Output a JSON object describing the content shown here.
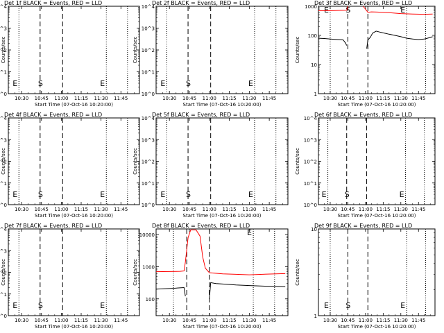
{
  "figure": {
    "panels_grid": "3x3",
    "xlabel": "Start Time (07-Oct-16 10:20:00)",
    "ylabel": "Counts/sec",
    "x_tick_labels": [
      "10:30",
      "10:45",
      "11:00",
      "11:15",
      "11:30",
      "11:45"
    ],
    "marker_labels": {
      "end": "E",
      "start": "S"
    },
    "colors": {
      "events": "#000000",
      "lld": "#ff0000",
      "frame": "#000000"
    }
  },
  "chart_data": [
    {
      "id": "det1",
      "type": "line",
      "title": "Det 1f BLACK = Events, RED = LLD",
      "xlim": [
        "10:20",
        "11:59"
      ],
      "ylim": [
        1,
        10000
      ],
      "yscale": "log",
      "y_tick_labels": [
        "10^0",
        "10^1",
        "10^2",
        "10^3",
        "10^4"
      ],
      "vlines": [
        {
          "style": "dotted",
          "x": "10:28",
          "label": "E"
        },
        {
          "style": "dashed",
          "x": "10:44",
          "label": "S"
        },
        {
          "style": "dashed",
          "x": "11:01",
          "label": ""
        },
        {
          "style": "dotted",
          "x": "11:34",
          "label": "E"
        },
        {
          "style": "dotted",
          "x": "11:50",
          "label": ""
        }
      ],
      "series": []
    },
    {
      "id": "det2",
      "type": "line",
      "title": "Det 2f BLACK = Events, RED = LLD",
      "xlim": [
        "10:20",
        "11:59"
      ],
      "ylim": [
        1,
        10000
      ],
      "yscale": "log",
      "y_tick_labels": [
        "10^0",
        "10^1",
        "10^2",
        "10^3",
        "10^4"
      ],
      "vlines": [
        {
          "style": "dotted",
          "x": "10:28",
          "label": "E"
        },
        {
          "style": "dashed",
          "x": "10:44",
          "label": "S"
        },
        {
          "style": "dashed",
          "x": "11:01",
          "label": ""
        },
        {
          "style": "dotted",
          "x": "11:34",
          "label": "E"
        },
        {
          "style": "dotted",
          "x": "11:50",
          "label": ""
        }
      ],
      "series": []
    },
    {
      "id": "det3",
      "type": "line",
      "title": "Det 3f BLACK = Events, RED = LLD",
      "xlim": [
        "10:20",
        "11:59"
      ],
      "ylim": [
        1,
        1000
      ],
      "yscale": "log",
      "y_tick_labels": [
        "1",
        "10",
        "100",
        "1000"
      ],
      "vlines": [
        {
          "style": "dotted",
          "x": "10:30",
          "label": "E"
        },
        {
          "style": "dashed",
          "x": "10:45",
          "label": "S"
        },
        {
          "style": "dashed",
          "x": "11:02",
          "label": ""
        },
        {
          "style": "dotted",
          "x": "11:35",
          "label": "E"
        },
        {
          "style": "dotted",
          "x": "11:51",
          "label": ""
        }
      ],
      "series": [
        {
          "color": "#ff0000",
          "segments": [
            [
              [
                "10:20",
                700
              ],
              [
                "10:30",
                700
              ],
              [
                "10:38",
                720
              ],
              [
                "10:44",
                730
              ],
              [
                "10:45",
                1000
              ]
            ],
            [
              [
                "10:58",
                1000
              ],
              [
                "11:02",
                620
              ],
              [
                "11:05",
                640
              ],
              [
                "11:10",
                630
              ],
              [
                "11:20",
                600
              ],
              [
                "11:30",
                560
              ],
              [
                "11:40",
                540
              ],
              [
                "11:50",
                530
              ],
              [
                "11:57",
                540
              ]
            ]
          ]
        },
        {
          "color": "#000000",
          "segments": [
            [
              [
                "10:20",
                80
              ],
              [
                "10:25",
                78
              ],
              [
                "10:30",
                75
              ],
              [
                "10:36",
                72
              ],
              [
                "10:41",
                70
              ],
              [
                "10:43",
                55
              ],
              [
                "10:44",
                45
              ]
            ],
            [
              [
                "11:01",
                35
              ],
              [
                "11:02",
                70
              ],
              [
                "11:04",
                85
              ],
              [
                "11:06",
                120
              ],
              [
                "11:09",
                140
              ],
              [
                "11:12",
                130
              ],
              [
                "11:16",
                120
              ],
              [
                "11:20",
                110
              ],
              [
                "11:25",
                100
              ],
              [
                "11:30",
                90
              ],
              [
                "11:35",
                80
              ],
              [
                "11:40",
                75
              ],
              [
                "11:45",
                72
              ],
              [
                "11:50",
                75
              ],
              [
                "11:55",
                85
              ],
              [
                "11:57",
                90
              ]
            ]
          ]
        }
      ]
    },
    {
      "id": "det4",
      "type": "line",
      "title": "Det 4f BLACK = Events, RED = LLD",
      "xlim": [
        "10:20",
        "11:59"
      ],
      "ylim": [
        1,
        10000
      ],
      "yscale": "log",
      "y_tick_labels": [
        "10^0",
        "10^1",
        "10^2",
        "10^3",
        "10^4"
      ],
      "vlines": [
        {
          "style": "dotted",
          "x": "10:28",
          "label": "E"
        },
        {
          "style": "dashed",
          "x": "10:44",
          "label": "S"
        },
        {
          "style": "dashed",
          "x": "11:01",
          "label": ""
        },
        {
          "style": "dotted",
          "x": "11:34",
          "label": "E"
        },
        {
          "style": "dotted",
          "x": "11:50",
          "label": ""
        }
      ],
      "series": []
    },
    {
      "id": "det5",
      "type": "line",
      "title": "Det 5f BLACK = Events, RED = LLD",
      "xlim": [
        "10:20",
        "11:59"
      ],
      "ylim": [
        1,
        10000
      ],
      "yscale": "log",
      "y_tick_labels": [
        "10^0",
        "10^1",
        "10^2",
        "10^3",
        "10^4"
      ],
      "vlines": [
        {
          "style": "dotted",
          "x": "10:28",
          "label": "E"
        },
        {
          "style": "dashed",
          "x": "10:44",
          "label": "S"
        },
        {
          "style": "dashed",
          "x": "11:01",
          "label": ""
        },
        {
          "style": "dotted",
          "x": "11:34",
          "label": "E"
        },
        {
          "style": "dotted",
          "x": "11:50",
          "label": ""
        }
      ],
      "series": []
    },
    {
      "id": "det6",
      "type": "line",
      "title": "Det 6f BLACK = Events, RED = LLD",
      "xlim": [
        "10:20",
        "11:59"
      ],
      "ylim": [
        1,
        10000
      ],
      "yscale": "log",
      "y_tick_labels": [
        "10^0",
        "10^1",
        "10^2",
        "10^3",
        "10^4"
      ],
      "vlines": [
        {
          "style": "dotted",
          "x": "10:28",
          "label": "E"
        },
        {
          "style": "dashed",
          "x": "10:44",
          "label": "S"
        },
        {
          "style": "dashed",
          "x": "11:01",
          "label": ""
        },
        {
          "style": "dotted",
          "x": "11:34",
          "label": "E"
        },
        {
          "style": "dotted",
          "x": "11:50",
          "label": ""
        }
      ],
      "series": []
    },
    {
      "id": "det7",
      "type": "line",
      "title": "Det 7f BLACK = Events, RED = LLD",
      "xlim": [
        "10:20",
        "11:59"
      ],
      "ylim": [
        1,
        10000
      ],
      "yscale": "log",
      "y_tick_labels": [
        "10^0",
        "10^1",
        "10^2",
        "10^3",
        "10^4"
      ],
      "vlines": [
        {
          "style": "dotted",
          "x": "10:28",
          "label": "E"
        },
        {
          "style": "dashed",
          "x": "10:44",
          "label": "S"
        },
        {
          "style": "dashed",
          "x": "11:01",
          "label": ""
        },
        {
          "style": "dotted",
          "x": "11:34",
          "label": "E"
        },
        {
          "style": "dotted",
          "x": "11:50",
          "label": ""
        }
      ],
      "series": []
    },
    {
      "id": "det8",
      "type": "line",
      "title": "Det 8f BLACK = Events, RED = LLD",
      "xlim": [
        "10:20",
        "11:59"
      ],
      "ylim": [
        30,
        15000
      ],
      "yscale": "log",
      "y_tick_labels": [
        "100",
        "1000",
        "10000"
      ],
      "vlines": [
        {
          "style": "dotted",
          "x": "10:33",
          "label": ""
        },
        {
          "style": "dashed",
          "x": "10:43",
          "label": ""
        },
        {
          "style": "dashed",
          "x": "11:00",
          "label": ""
        },
        {
          "style": "dotted",
          "x": "11:33",
          "label": "E"
        },
        {
          "style": "dotted",
          "x": "11:49",
          "label": ""
        }
      ],
      "series": [
        {
          "color": "#ff0000",
          "segments": [
            [
              [
                "10:20",
                700
              ],
              [
                "10:30",
                710
              ],
              [
                "10:38",
                720
              ],
              [
                "10:41",
                740
              ],
              [
                "10:42",
                1400
              ],
              [
                "10:44",
                8000
              ],
              [
                "10:46",
                14000
              ],
              [
                "10:50",
                14000
              ],
              [
                "10:53",
                9000
              ],
              [
                "10:55",
                2000
              ],
              [
                "10:57",
                900
              ],
              [
                "11:00",
                650
              ],
              [
                "11:10",
                600
              ],
              [
                "11:20",
                580
              ],
              [
                "11:30",
                560
              ],
              [
                "11:40",
                580
              ],
              [
                "11:50",
                600
              ],
              [
                "11:57",
                610
              ]
            ]
          ]
        },
        {
          "color": "#000000",
          "segments": [
            [
              [
                "10:20",
                200
              ],
              [
                "10:30",
                210
              ],
              [
                "10:38",
                220
              ],
              [
                "10:41",
                225
              ],
              [
                "10:42",
                120
              ]
            ],
            [
              [
                "11:00",
                100
              ],
              [
                "11:01",
                320
              ],
              [
                "11:05",
                300
              ],
              [
                "11:10",
                290
              ],
              [
                "11:20",
                270
              ],
              [
                "11:30",
                260
              ],
              [
                "11:40",
                250
              ],
              [
                "11:50",
                245
              ],
              [
                "11:57",
                240
              ]
            ]
          ]
        }
      ]
    },
    {
      "id": "det9",
      "type": "line",
      "title": "Det 9f BLACK = Events, RED = LLD",
      "xlim": [
        "10:20",
        "11:59"
      ],
      "ylim": [
        1,
        10
      ],
      "yscale": "log",
      "y_tick_labels": [
        "1",
        "10"
      ],
      "vlines": [
        {
          "style": "dotted",
          "x": "10:30",
          "label": "E"
        },
        {
          "style": "dashed",
          "x": "10:45",
          "label": "S"
        },
        {
          "style": "dashed",
          "x": "11:02",
          "label": ""
        },
        {
          "style": "dotted",
          "x": "11:35",
          "label": "E"
        },
        {
          "style": "dotted",
          "x": "11:51",
          "label": ""
        }
      ],
      "series": []
    }
  ]
}
